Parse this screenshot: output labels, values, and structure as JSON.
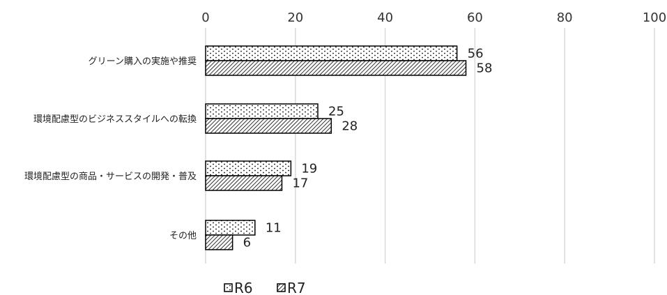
{
  "chart_data": {
    "type": "bar",
    "orientation": "horizontal",
    "categories": [
      "グリーン購入の実施や推奨",
      "環境配慮型のビジネススタイルへの転換",
      "環境配慮型の商品・サービスの開発・普及",
      "その他"
    ],
    "series": [
      {
        "name": "R6",
        "values": [
          56,
          25,
          19,
          11
        ],
        "pattern": "dots"
      },
      {
        "name": "R7",
        "values": [
          58,
          28,
          17,
          6
        ],
        "pattern": "diagonal-hatch"
      }
    ],
    "xlim": [
      0,
      100
    ],
    "xticks": [
      0,
      20,
      40,
      60,
      80,
      100
    ],
    "axis_position": "top",
    "grid": true,
    "legend_position": "bottom",
    "colors": {
      "bar_stroke": "#000000",
      "grid": "#d9d9d9",
      "background": "#ffffff"
    }
  }
}
